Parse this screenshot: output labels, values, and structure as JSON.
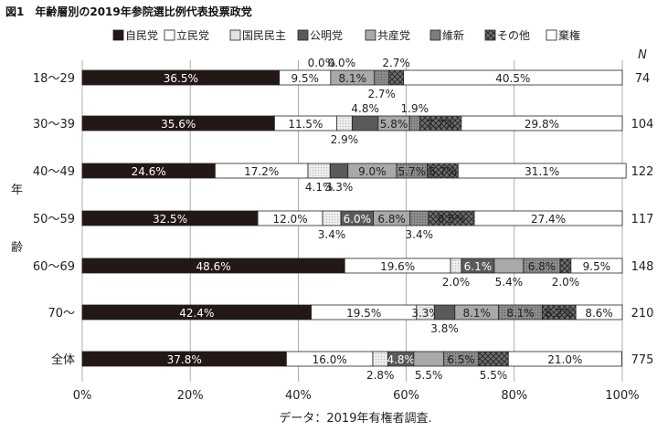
{
  "chart_data": {
    "type": "bar",
    "stacked": true,
    "orientation": "horizontal",
    "title": "図1　年齢層別の2019年参院選比例代表投票政党",
    "ylabel": "年齢",
    "n_header": "N",
    "source": "データ：2019年有権者調査.",
    "xlim": [
      0,
      100
    ],
    "x_ticks": [
      "0%",
      "20%",
      "40%",
      "60%",
      "80%",
      "100%"
    ],
    "legend_position": "top",
    "categories": [
      "18〜29",
      "30〜39",
      "40〜49",
      "50〜59",
      "60〜69",
      "70〜",
      "全体"
    ],
    "n": [
      "74",
      "104",
      "122",
      "117",
      "148",
      "210",
      "775"
    ],
    "series": [
      {
        "name": "自民党",
        "color": "#231815",
        "values": [
          36.5,
          35.6,
          24.6,
          32.5,
          48.6,
          42.4,
          37.8
        ],
        "labels": [
          "36.5%",
          "35.6%",
          "24.6%",
          "32.5%",
          "48.6%",
          "42.4%",
          "37.8%"
        ]
      },
      {
        "name": "立民党",
        "color": "#ffffff",
        "values": [
          9.5,
          11.5,
          17.2,
          12.0,
          19.6,
          19.5,
          16.0
        ],
        "labels": [
          "9.5%",
          "11.5%",
          "17.2%",
          "12.0%",
          "19.6%",
          "19.5%",
          "16.0%"
        ]
      },
      {
        "name": "国民民主",
        "color": "#e6e6e6",
        "values": [
          0.0,
          2.9,
          4.1,
          3.4,
          2.0,
          3.3,
          2.8
        ],
        "labels": [
          "0.0%",
          "2.9%",
          "4.1%",
          "3.4%",
          "2.0%",
          "3.3%",
          "2.8%"
        ]
      },
      {
        "name": "公明党",
        "color": "#5a5a5a",
        "values": [
          0.0,
          4.8,
          3.3,
          6.0,
          6.1,
          3.8,
          4.8
        ],
        "labels": [
          "0.0%",
          "4.8%",
          "3.3%",
          "6.0%",
          "6.1%",
          "3.8%",
          "4.8%"
        ]
      },
      {
        "name": "共産党",
        "color": "#a8a8a8",
        "values": [
          8.1,
          5.8,
          9.0,
          6.8,
          5.4,
          8.1,
          5.5
        ],
        "labels": [
          "8.1%",
          "5.8%",
          "9.0%",
          "6.8%",
          "5.4%",
          "8.1%",
          "5.5%"
        ]
      },
      {
        "name": "維新",
        "color": "#7d7d7d",
        "values": [
          2.7,
          1.9,
          5.7,
          3.4,
          6.8,
          8.1,
          6.5
        ],
        "labels": [
          "2.7%",
          "1.9%",
          "5.7%",
          "3.4%",
          "6.8%",
          "8.1%",
          "6.5%"
        ]
      },
      {
        "name": "その他",
        "color": "#5a5a5a",
        "values": [
          2.7,
          7.7,
          5.7,
          8.5,
          2.0,
          6.2,
          5.5
        ],
        "labels": [
          "2.7%",
          "7.7%",
          "5.7%",
          "8.5%",
          "2.0%",
          "6.2%",
          "5.5%"
        ]
      },
      {
        "name": "棄権",
        "color": "#ffffff",
        "values": [
          40.5,
          29.8,
          31.1,
          27.4,
          9.5,
          8.6,
          21.0
        ],
        "labels": [
          "40.5%",
          "29.8%",
          "31.1%",
          "27.4%",
          "9.5%",
          "8.6%",
          "21.0%"
        ]
      }
    ]
  }
}
